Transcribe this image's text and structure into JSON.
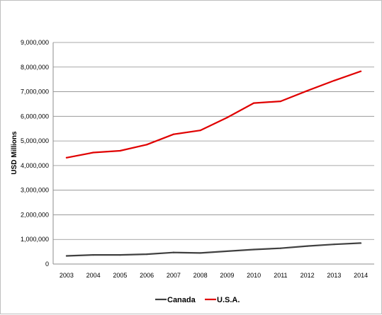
{
  "chart_data": {
    "type": "line",
    "title": "",
    "xlabel": "",
    "ylabel": "USD Millions",
    "x": [
      "2003",
      "2004",
      "2005",
      "2006",
      "2007",
      "2008",
      "2009",
      "2010",
      "2011",
      "2012",
      "2013",
      "2014"
    ],
    "ylim": [
      0,
      9000000
    ],
    "yticks": [
      "0",
      "1,000,000",
      "2,000,000",
      "3,000,000",
      "4,000,000",
      "5,000,000",
      "6,000,000",
      "7,000,000",
      "8,000,000",
      "9,000,000"
    ],
    "grid": true,
    "legend": "bottom",
    "series": [
      {
        "name": "Canada",
        "color": "#404040",
        "values": [
          330000,
          370000,
          370000,
          400000,
          470000,
          450000,
          520000,
          590000,
          640000,
          730000,
          800000,
          850000
        ]
      },
      {
        "name": "U.S.A.",
        "color": "#e00000",
        "values": [
          4320000,
          4530000,
          4600000,
          4850000,
          5270000,
          5430000,
          5950000,
          6540000,
          6610000,
          7040000,
          7450000,
          7830000
        ]
      }
    ]
  }
}
